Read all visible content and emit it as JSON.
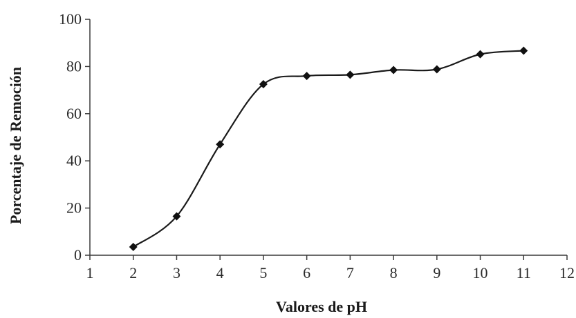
{
  "chart_data": {
    "type": "line",
    "smoothed": true,
    "title": "",
    "xlabel": "Valores de pH",
    "ylabel": "Porcentaje de Remoción",
    "xlim": [
      1,
      12
    ],
    "ylim": [
      0,
      100
    ],
    "x_ticks": [
      1,
      2,
      3,
      4,
      5,
      6,
      7,
      8,
      9,
      10,
      11,
      12
    ],
    "y_ticks": [
      0,
      20,
      40,
      60,
      80,
      100
    ],
    "grid": false,
    "legend": "none",
    "marker": "diamond",
    "line_color": "#1a1a1a",
    "series": [
      {
        "x": [
          2,
          3,
          4,
          5,
          6,
          7,
          8,
          9,
          10,
          11
        ],
        "y": [
          3.5,
          16.5,
          47,
          72.5,
          76,
          76.5,
          78.5,
          78.8,
          85.2,
          86.7
        ]
      }
    ]
  }
}
